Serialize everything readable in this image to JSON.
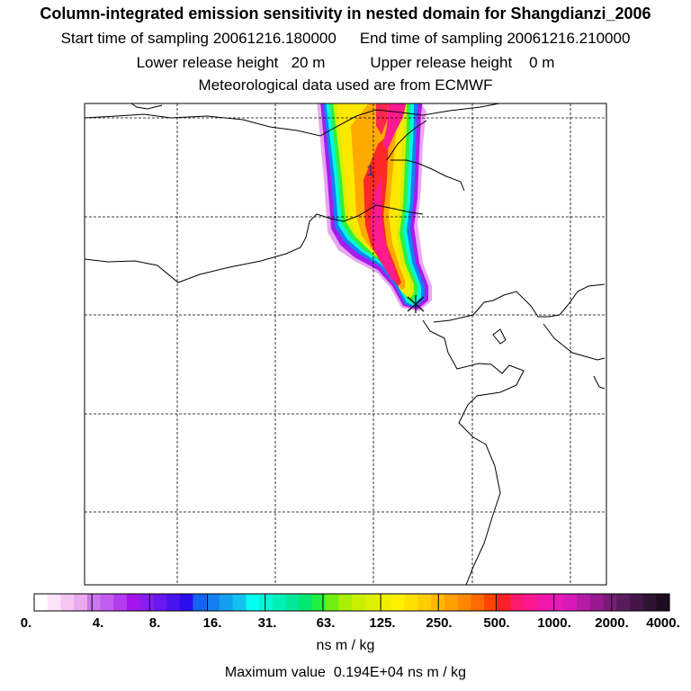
{
  "title": {
    "main": "Column-integrated emission sensitivity in nested domain for Shangdianzi_2006",
    "start_label": "Start time of sampling",
    "start_value": "20061216.180000",
    "end_label": "End time of sampling",
    "end_value": "20061216.210000",
    "lower_label": "Lower release height",
    "lower_value": "20 m",
    "upper_label": "Upper release height",
    "upper_value": "0 m",
    "met": "Meteorological data used are from ECMWF"
  },
  "map": {
    "plume_label": "1",
    "receptor_marker": "receptor-cross",
    "land_line_color": "#000000",
    "grid_line_color": "#000000"
  },
  "legend": {
    "tick_labels": [
      "0.",
      "4.",
      "8.",
      "16.",
      "31.",
      "63.",
      "125.",
      "250.",
      "500.",
      "1000.",
      "2000.",
      "4000."
    ],
    "colors": [
      "#ffffff",
      "#fbe3fb",
      "#f4c6f4",
      "#ecaaee",
      "#cc77ee",
      "#c15cf0",
      "#b33cf0",
      "#a614f0",
      "#8a1ef0",
      "#6a18f0",
      "#4a12f0",
      "#2a10ee",
      "#1464f0",
      "#1480f0",
      "#14a0f0",
      "#14c0f0",
      "#00fff0",
      "#00f8d8",
      "#00f0b8",
      "#00e898",
      "#00e870",
      "#20f040",
      "#70f010",
      "#a8f000",
      "#c8f000",
      "#ddf000",
      "#eef000",
      "#fff000",
      "#ffe000",
      "#ffcc00",
      "#ffb800",
      "#ffa000",
      "#ff8800",
      "#ff6a00",
      "#ff4400",
      "#ff1e28",
      "#ff1a70",
      "#ff1890",
      "#f018a8",
      "#e81ab8",
      "#d81ab8",
      "#b81aa8",
      "#981a90",
      "#781c78",
      "#5a1a5e",
      "#441648",
      "#301232",
      "#200c20"
    ],
    "units": "ns m / kg"
  },
  "footer": {
    "max_label": "Maximum value",
    "max_value": "0.194E+04",
    "max_units": "ns m / kg"
  }
}
